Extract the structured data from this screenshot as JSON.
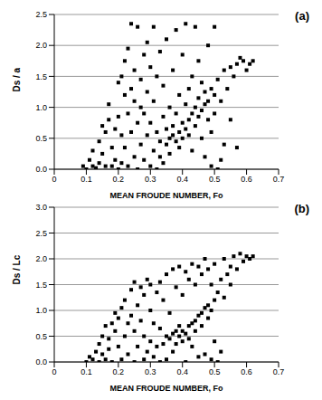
{
  "chart_data": [
    {
      "type": "scatter",
      "title": "(a)",
      "x_label": "MEAN FROUDE NUMBER, Fo",
      "y_label": "Ds / a",
      "color": "#000000",
      "marker": "square",
      "grid": true,
      "xlim": [
        0,
        0.7
      ],
      "xticks": [
        0,
        0.1,
        0.2,
        0.3,
        0.4,
        0.5,
        0.6,
        0.7
      ],
      "ylim": [
        0,
        2.5
      ],
      "yticks": [
        {
          "value": 0,
          "label": "0.0"
        },
        0.5,
        {
          "value": 1,
          "label": "1.0"
        },
        1.5,
        {
          "value": 2,
          "label": "2.0"
        },
        2.5
      ],
      "x": [
        0.09,
        0.1,
        0.11,
        0.12,
        0.12,
        0.13,
        0.14,
        0.14,
        0.15,
        0.15,
        0.16,
        0.16,
        0.17,
        0.17,
        0.18,
        0.18,
        0.19,
        0.19,
        0.2,
        0.2,
        0.2,
        0.21,
        0.21,
        0.21,
        0.22,
        0.22,
        0.22,
        0.23,
        0.23,
        0.23,
        0.24,
        0.24,
        0.24,
        0.25,
        0.25,
        0.25,
        0.26,
        0.26,
        0.26,
        0.27,
        0.27,
        0.27,
        0.28,
        0.28,
        0.28,
        0.29,
        0.29,
        0.29,
        0.3,
        0.3,
        0.3,
        0.31,
        0.31,
        0.31,
        0.32,
        0.32,
        0.32,
        0.33,
        0.33,
        0.33,
        0.34,
        0.34,
        0.34,
        0.35,
        0.35,
        0.35,
        0.36,
        0.36,
        0.36,
        0.37,
        0.37,
        0.37,
        0.38,
        0.38,
        0.38,
        0.39,
        0.39,
        0.39,
        0.4,
        0.4,
        0.4,
        0.41,
        0.41,
        0.41,
        0.42,
        0.42,
        0.42,
        0.43,
        0.43,
        0.43,
        0.44,
        0.44,
        0.44,
        0.45,
        0.45,
        0.45,
        0.46,
        0.46,
        0.46,
        0.47,
        0.47,
        0.47,
        0.48,
        0.48,
        0.48,
        0.49,
        0.49,
        0.49,
        0.5,
        0.5,
        0.5,
        0.51,
        0.51,
        0.52,
        0.52,
        0.53,
        0.53,
        0.54,
        0.55,
        0.55,
        0.56,
        0.57,
        0.57,
        0.58,
        0.59,
        0.6,
        0.61,
        0.62
      ],
      "y": [
        0.05,
        0.0,
        0.15,
        0.3,
        0.05,
        0.02,
        0.45,
        0.1,
        0.25,
        0.7,
        0.6,
        0.05,
        1.05,
        0.8,
        0.35,
        0.05,
        0.65,
        0.15,
        1.4,
        0.85,
        0.0,
        1.5,
        0.55,
        0.1,
        1.75,
        1.2,
        0.35,
        1.95,
        0.9,
        0.05,
        2.35,
        1.3,
        0.6,
        1.1,
        0.2,
        1.6,
        2.3,
        0.75,
        0.0,
        1.45,
        0.4,
        1.0,
        1.85,
        0.15,
        0.9,
        2.05,
        0.55,
        1.25,
        0.05,
        1.65,
        0.75,
        2.3,
        0.3,
        1.1,
        0.0,
        1.5,
        0.6,
        0.2,
        1.9,
        0.45,
        0.85,
        0.1,
        1.35,
        0.4,
        2.1,
        0.65,
        0.5,
        1.0,
        0.25,
        0.55,
        1.6,
        0.7,
        0.45,
        2.25,
        0.9,
        0.6,
        1.2,
        0.35,
        0.5,
        1.85,
        0.75,
        0.65,
        1.05,
        2.35,
        0.8,
        1.3,
        0.55,
        0.9,
        1.5,
        0.3,
        1.0,
        2.3,
        0.7,
        1.15,
        0.85,
        1.75,
        0.95,
        1.4,
        0.5,
        1.05,
        1.25,
        0.2,
        1.1,
        0.8,
        2.0,
        0.05,
        1.3,
        0.6,
        1.2,
        2.3,
        0.9,
        0.0,
        1.45,
        1.1,
        0.15,
        1.6,
        0.4,
        1.3,
        1.65,
        0.8,
        1.5,
        0.35,
        1.7,
        1.8,
        1.75,
        1.6,
        1.7,
        1.75
      ]
    },
    {
      "type": "scatter",
      "title": "(b)",
      "x_label": "MEAN FROUDE NUMBER, Fo",
      "y_label": "Ds / Lc",
      "color": "#000000",
      "marker": "square",
      "grid": true,
      "xlim": [
        0,
        0.7
      ],
      "xticks": [
        0,
        0.1,
        0.2,
        0.3,
        0.4,
        0.5,
        0.6,
        0.7
      ],
      "ylim": [
        0,
        3
      ],
      "yticks": [
        {
          "value": 0,
          "label": "0.0"
        },
        0.5,
        {
          "value": 1,
          "label": "1.0"
        },
        1.5,
        {
          "value": 2,
          "label": "2.0"
        },
        2.5,
        {
          "value": 3,
          "label": "3.0"
        }
      ],
      "x": [
        0.1,
        0.11,
        0.12,
        0.13,
        0.14,
        0.14,
        0.15,
        0.15,
        0.16,
        0.16,
        0.17,
        0.17,
        0.18,
        0.18,
        0.19,
        0.19,
        0.2,
        0.2,
        0.21,
        0.21,
        0.22,
        0.22,
        0.23,
        0.23,
        0.24,
        0.24,
        0.25,
        0.25,
        0.25,
        0.26,
        0.26,
        0.27,
        0.27,
        0.28,
        0.28,
        0.28,
        0.29,
        0.29,
        0.3,
        0.3,
        0.3,
        0.31,
        0.31,
        0.32,
        0.32,
        0.33,
        0.33,
        0.33,
        0.34,
        0.34,
        0.35,
        0.35,
        0.35,
        0.36,
        0.36,
        0.37,
        0.37,
        0.37,
        0.38,
        0.38,
        0.38,
        0.39,
        0.39,
        0.39,
        0.4,
        0.4,
        0.4,
        0.41,
        0.41,
        0.41,
        0.42,
        0.42,
        0.42,
        0.43,
        0.43,
        0.43,
        0.44,
        0.44,
        0.44,
        0.45,
        0.45,
        0.45,
        0.46,
        0.46,
        0.46,
        0.47,
        0.47,
        0.47,
        0.48,
        0.48,
        0.48,
        0.49,
        0.49,
        0.49,
        0.5,
        0.5,
        0.5,
        0.51,
        0.51,
        0.52,
        0.52,
        0.53,
        0.53,
        0.54,
        0.55,
        0.55,
        0.56,
        0.57,
        0.58,
        0.59,
        0.6,
        0.61,
        0.62
      ],
      "y": [
        0.0,
        0.1,
        0.05,
        0.2,
        0.0,
        0.35,
        0.15,
        0.5,
        0.7,
        0.05,
        0.45,
        0.25,
        0.75,
        0.0,
        0.6,
        0.95,
        0.3,
        0.85,
        1.05,
        0.05,
        0.5,
        1.2,
        0.75,
        0.15,
        1.4,
        0.9,
        0.0,
        1.55,
        0.6,
        1.1,
        0.3,
        1.45,
        0.8,
        0.05,
        1.3,
        0.5,
        1.6,
        0.2,
        1.0,
        0.4,
        1.5,
        0.1,
        0.75,
        1.35,
        0.3,
        1.55,
        0.0,
        0.65,
        1.2,
        0.35,
        1.7,
        0.5,
        0.05,
        0.95,
        0.45,
        1.8,
        0.55,
        0.2,
        1.45,
        0.6,
        0.35,
        1.85,
        0.5,
        0.7,
        1.3,
        0.4,
        0.6,
        1.75,
        0.55,
        0.0,
        1.6,
        0.7,
        0.45,
        1.9,
        0.75,
        0.3,
        1.5,
        0.8,
        0.6,
        1.85,
        0.9,
        0.1,
        1.7,
        0.95,
        0.7,
        2.0,
        1.05,
        0.15,
        1.8,
        1.1,
        0.85,
        1.5,
        1.0,
        0.05,
        1.9,
        1.2,
        0.4,
        0.0,
        1.35,
        1.6,
        0.2,
        2.0,
        1.25,
        1.7,
        1.85,
        1.5,
        2.05,
        1.8,
        2.1,
        1.95,
        2.05,
        2.0,
        2.05
      ]
    }
  ]
}
